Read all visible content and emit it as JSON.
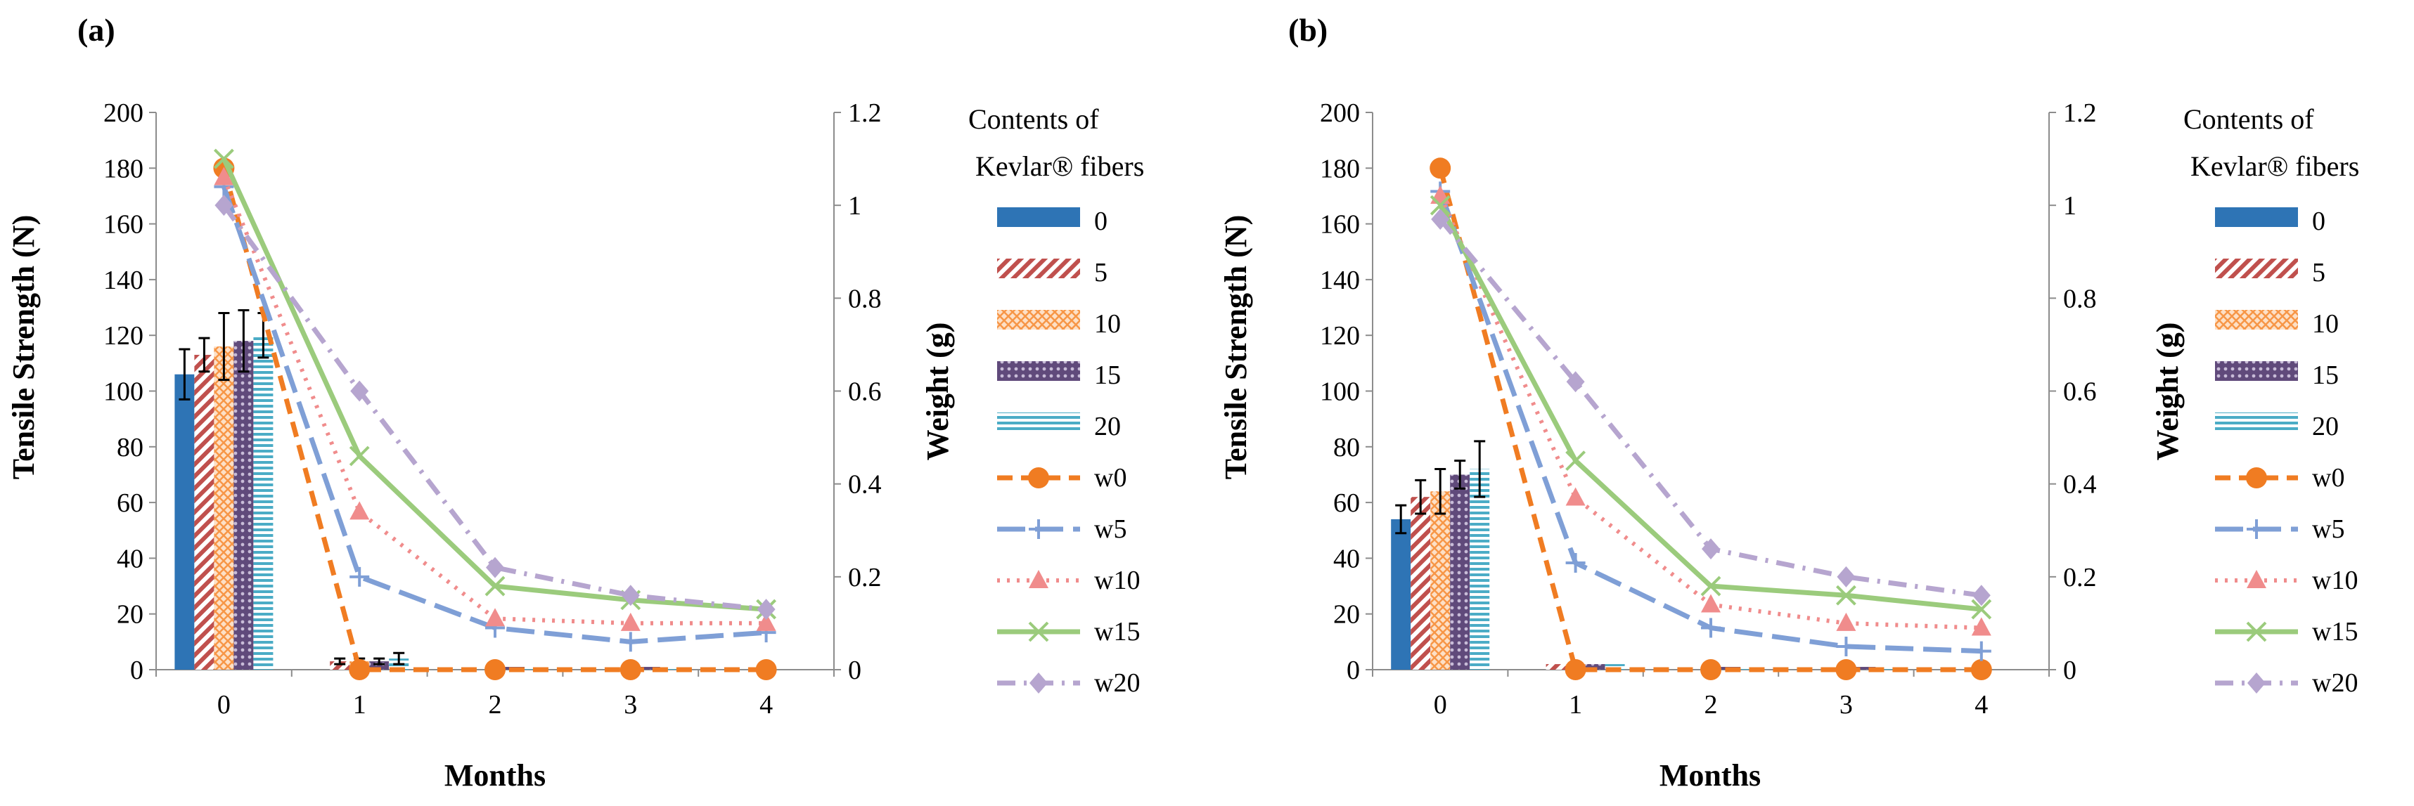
{
  "chart_data": [
    {
      "type": "bar+line",
      "panel_label": "(a)",
      "xlabel": "Months",
      "ylabel_left": "Tensile Strength (N)",
      "ylabel_right": "Weight  (g)",
      "categories": [
        "0",
        "1",
        "2",
        "3",
        "4"
      ],
      "ylim_left": [
        0,
        200
      ],
      "yticks_left": [
        "0",
        "20",
        "40",
        "60",
        "80",
        "100",
        "120",
        "140",
        "160",
        "180",
        "200"
      ],
      "ylim_right": [
        0,
        1.2
      ],
      "yticks_right": [
        "0",
        "0.2",
        "0.4",
        "0.6",
        "0.8",
        "1",
        "1.2"
      ],
      "bar_series": [
        {
          "name": "0",
          "values": [
            106,
            0,
            0,
            0,
            0
          ],
          "errors": [
            9,
            0,
            0,
            0,
            0
          ]
        },
        {
          "name": "5",
          "values": [
            113,
            3,
            0,
            0,
            0
          ],
          "errors": [
            6,
            1,
            0,
            0,
            0
          ]
        },
        {
          "name": "10",
          "values": [
            116,
            3,
            1,
            0,
            0
          ],
          "errors": [
            12,
            1,
            0,
            0,
            0
          ]
        },
        {
          "name": "15",
          "values": [
            118,
            3,
            1,
            1,
            0
          ],
          "errors": [
            11,
            1,
            0,
            0,
            0
          ]
        },
        {
          "name": "20",
          "values": [
            120,
            4,
            1,
            1,
            0
          ],
          "errors": [
            8,
            2,
            0,
            0,
            0
          ]
        }
      ],
      "line_series": [
        {
          "name": "w0",
          "values": [
            1.08,
            0.0,
            0.0,
            0.0,
            0.0
          ]
        },
        {
          "name": "w5",
          "values": [
            1.04,
            0.2,
            0.09,
            0.06,
            0.08
          ]
        },
        {
          "name": "w10",
          "values": [
            1.06,
            0.34,
            0.11,
            0.1,
            0.1
          ]
        },
        {
          "name": "w15",
          "values": [
            1.1,
            0.46,
            0.18,
            0.15,
            0.13
          ]
        },
        {
          "name": "w20",
          "values": [
            1.0,
            0.6,
            0.22,
            0.16,
            0.13
          ]
        }
      ]
    },
    {
      "type": "bar+line",
      "panel_label": "(b)",
      "xlabel": "Months",
      "ylabel_left": "Tensile Strength (N)",
      "ylabel_right": "Weight  (g)",
      "categories": [
        "0",
        "1",
        "2",
        "3",
        "4"
      ],
      "ylim_left": [
        0,
        200
      ],
      "yticks_left": [
        "0",
        "20",
        "40",
        "60",
        "80",
        "100",
        "120",
        "140",
        "160",
        "180",
        "200"
      ],
      "ylim_right": [
        0,
        1.2
      ],
      "yticks_right": [
        "0",
        "0.2",
        "0.4",
        "0.6",
        "0.8",
        "1",
        "1.2"
      ],
      "bar_series": [
        {
          "name": "0",
          "values": [
            54,
            0,
            0,
            0,
            0
          ],
          "errors": [
            5,
            0,
            0,
            0,
            0
          ]
        },
        {
          "name": "5",
          "values": [
            62,
            2,
            0,
            0,
            0
          ],
          "errors": [
            6,
            0,
            0,
            0,
            0
          ]
        },
        {
          "name": "10",
          "values": [
            64,
            2,
            1,
            0,
            0
          ],
          "errors": [
            8,
            0,
            0,
            0,
            0
          ]
        },
        {
          "name": "15",
          "values": [
            70,
            2,
            1,
            1,
            0
          ],
          "errors": [
            5,
            0,
            0,
            0,
            0
          ]
        },
        {
          "name": "20",
          "values": [
            72,
            2,
            1,
            1,
            0
          ],
          "errors": [
            10,
            0,
            0,
            0,
            0
          ]
        }
      ],
      "line_series": [
        {
          "name": "w0",
          "values": [
            1.08,
            0.0,
            0.0,
            0.0,
            0.0
          ]
        },
        {
          "name": "w5",
          "values": [
            1.03,
            0.23,
            0.09,
            0.05,
            0.04
          ]
        },
        {
          "name": "w10",
          "values": [
            1.02,
            0.37,
            0.14,
            0.1,
            0.09
          ]
        },
        {
          "name": "w15",
          "values": [
            1.0,
            0.45,
            0.18,
            0.16,
            0.13
          ]
        },
        {
          "name": "w20",
          "values": [
            0.97,
            0.62,
            0.26,
            0.2,
            0.16
          ]
        }
      ]
    }
  ],
  "legend": {
    "title_line1": "Contents of",
    "title_line2": "Kevlar® fibers",
    "bar_items": [
      "0",
      "5",
      "10",
      "15",
      "20"
    ],
    "line_items": [
      "w0",
      "w5",
      "w10",
      "w15",
      "w20"
    ]
  },
  "colors": {
    "bar0": "#2e74b5",
    "bar5": "#c0504d",
    "bar10": "#f79646",
    "bar15": "#604a7b",
    "bar20": "#4bacc6",
    "w0": "#f07c22",
    "w5": "#7f9fd6",
    "w10": "#f08c8c",
    "w15": "#9bcb7c",
    "w20": "#b6a5cf"
  }
}
